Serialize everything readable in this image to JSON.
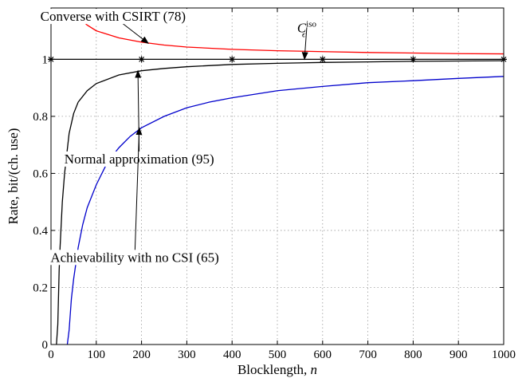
{
  "chart_data": {
    "type": "line",
    "xlabel_text": "Blocklength, ",
    "xlabel_var": "n",
    "ylabel": "Rate, bit/(ch. use)",
    "xlim": [
      0,
      1000
    ],
    "ylim": [
      0,
      1.18
    ],
    "x_ticks": [
      "0",
      "100",
      "200",
      "300",
      "400",
      "500",
      "600",
      "700",
      "800",
      "900",
      "1000"
    ],
    "y_ticks": [
      "0",
      "0.2",
      "0.4",
      "0.6",
      "0.8",
      "1"
    ],
    "y_tick_values": [
      0,
      0.2,
      0.4,
      0.6,
      0.8,
      1
    ],
    "grid": true,
    "series": [
      {
        "color": "#ff0000",
        "x": [
          60,
          80,
          100,
          150,
          200,
          250,
          300,
          400,
          500,
          600,
          700,
          800,
          900,
          1000
        ],
        "values": [
          1.148,
          1.12,
          1.1,
          1.075,
          1.06,
          1.05,
          1.043,
          1.035,
          1.03,
          1.027,
          1.024,
          1.022,
          1.02,
          1.019
        ]
      },
      {
        "color": "#000000",
        "x": [
          12,
          15,
          18,
          20,
          25,
          30,
          40,
          50,
          60,
          80,
          100,
          150,
          200,
          250,
          300,
          400,
          500,
          600,
          700,
          800,
          900,
          1000
        ],
        "values": [
          0.0,
          0.07,
          0.26,
          0.34,
          0.5,
          0.6,
          0.74,
          0.81,
          0.85,
          0.89,
          0.915,
          0.945,
          0.96,
          0.968,
          0.974,
          0.982,
          0.986,
          0.989,
          0.991,
          0.993,
          0.994,
          0.995
        ]
      },
      {
        "color": "#0000cc",
        "x": [
          36,
          40,
          45,
          50,
          60,
          70,
          80,
          100,
          125,
          150,
          175,
          200,
          250,
          300,
          350,
          400,
          500,
          600,
          700,
          800,
          900,
          1000
        ],
        "values": [
          0.0,
          0.05,
          0.16,
          0.23,
          0.34,
          0.42,
          0.48,
          0.56,
          0.64,
          0.69,
          0.73,
          0.76,
          0.8,
          0.83,
          0.85,
          0.865,
          0.89,
          0.905,
          0.918,
          0.925,
          0.933,
          0.94
        ]
      },
      {
        "color": "#000000",
        "x": [
          0,
          200,
          400,
          600,
          800,
          1000
        ],
        "values": [
          1,
          1,
          1,
          1,
          1,
          1
        ],
        "markers": true
      }
    ],
    "annotations": [
      {
        "text": "Converse with CSIRT (78)",
        "x_text": 137,
        "y_text": 1.135,
        "x_to": 215,
        "y_to": 1.056
      },
      {
        "text": "C",
        "sub": "ϵ",
        "sup": "iso",
        "x_text": 565,
        "y_text": 1.095,
        "x_to": 560,
        "y_to": 1.0
      },
      {
        "text": "Normal approximation (95)",
        "x_text": 195,
        "y_text": 0.635,
        "x_to": 192,
        "y_to": 0.96
      },
      {
        "text": "Achievability with no CSI (65)",
        "x_text": 185,
        "y_text": 0.29,
        "x_to": 195,
        "y_to": 0.76
      }
    ]
  }
}
